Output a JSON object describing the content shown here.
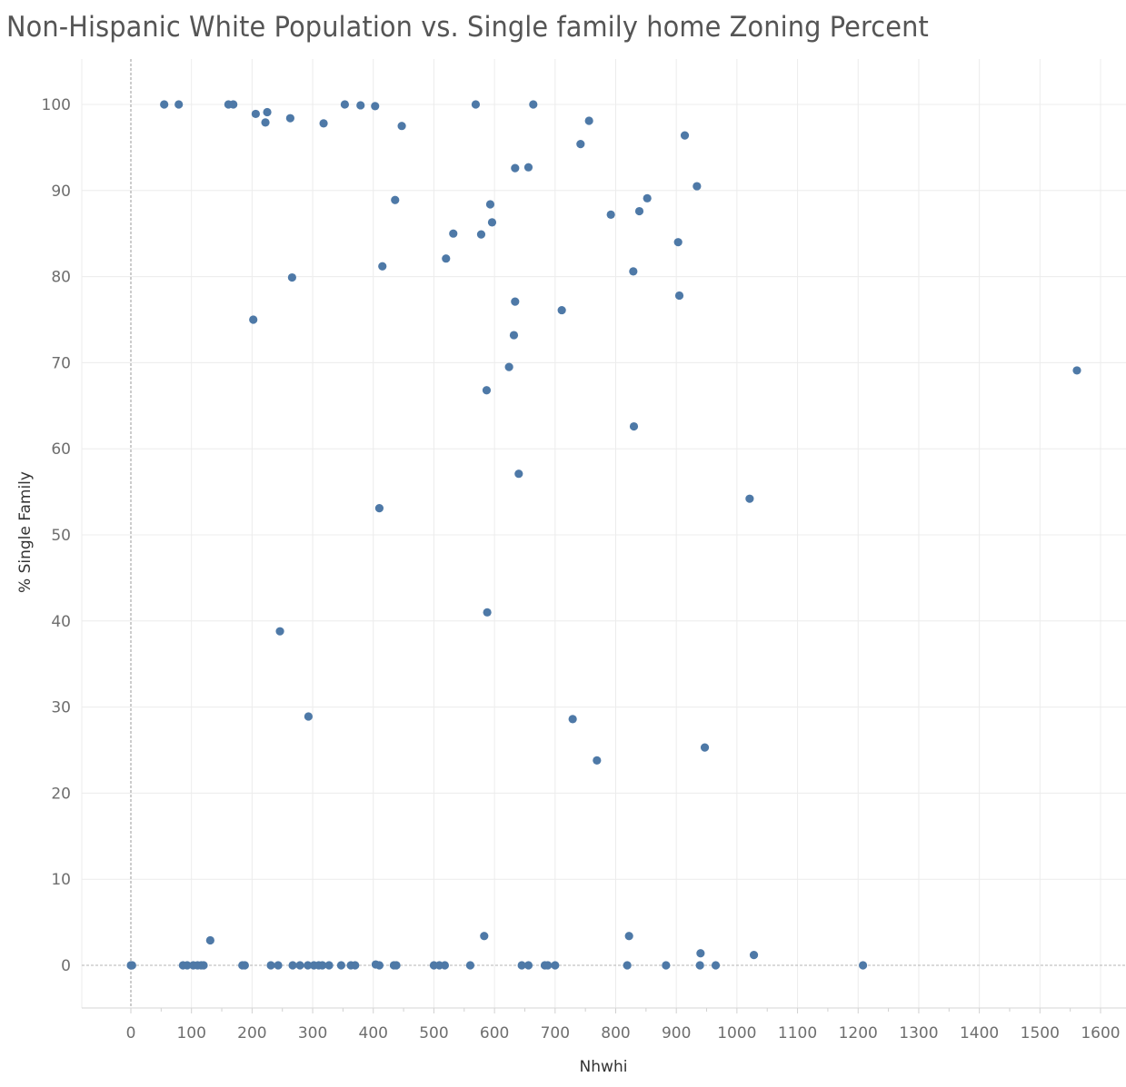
{
  "chart_data": {
    "type": "scatter",
    "title": "Non-Hispanic White Population vs. Single family home Zoning Percent",
    "xlabel": "Nhwhi",
    "ylabel": "% Single Family",
    "xlim": [
      -80,
      1640
    ],
    "ylim": [
      -5,
      105
    ],
    "x_ticks": [
      0,
      100,
      200,
      300,
      400,
      500,
      600,
      700,
      800,
      900,
      1000,
      1100,
      1200,
      1300,
      1400,
      1500,
      1600
    ],
    "y_ticks": [
      0,
      10,
      20,
      30,
      40,
      50,
      60,
      70,
      80,
      90,
      100
    ],
    "grid": true,
    "marker_color": "#4e79a7",
    "points": [
      {
        "x": 55,
        "y": 100
      },
      {
        "x": 79,
        "y": 100
      },
      {
        "x": 161,
        "y": 100
      },
      {
        "x": 169,
        "y": 100
      },
      {
        "x": 206,
        "y": 98.9
      },
      {
        "x": 225,
        "y": 99.1
      },
      {
        "x": 222,
        "y": 97.9
      },
      {
        "x": 263,
        "y": 98.4
      },
      {
        "x": 318,
        "y": 97.8
      },
      {
        "x": 353,
        "y": 100
      },
      {
        "x": 379,
        "y": 99.9
      },
      {
        "x": 403,
        "y": 99.8
      },
      {
        "x": 447,
        "y": 97.5
      },
      {
        "x": 569,
        "y": 100
      },
      {
        "x": 664,
        "y": 100
      },
      {
        "x": 756,
        "y": 98.1
      },
      {
        "x": 742,
        "y": 95.4
      },
      {
        "x": 914,
        "y": 96.4
      },
      {
        "x": 634,
        "y": 92.6
      },
      {
        "x": 656,
        "y": 92.7
      },
      {
        "x": 934,
        "y": 90.5
      },
      {
        "x": 436,
        "y": 88.9
      },
      {
        "x": 593,
        "y": 88.4
      },
      {
        "x": 852,
        "y": 89.1
      },
      {
        "x": 792,
        "y": 87.2
      },
      {
        "x": 839,
        "y": 87.6
      },
      {
        "x": 596,
        "y": 86.3
      },
      {
        "x": 532,
        "y": 85
      },
      {
        "x": 578,
        "y": 84.9
      },
      {
        "x": 903,
        "y": 84
      },
      {
        "x": 520,
        "y": 82.1
      },
      {
        "x": 415,
        "y": 81.2
      },
      {
        "x": 829,
        "y": 80.6
      },
      {
        "x": 266,
        "y": 79.9
      },
      {
        "x": 905,
        "y": 77.8
      },
      {
        "x": 634,
        "y": 77.1
      },
      {
        "x": 711,
        "y": 76.1
      },
      {
        "x": 202,
        "y": 75
      },
      {
        "x": 632,
        "y": 73.2
      },
      {
        "x": 624,
        "y": 69.5
      },
      {
        "x": 1561,
        "y": 69.1
      },
      {
        "x": 587,
        "y": 66.8
      },
      {
        "x": 830,
        "y": 62.6
      },
      {
        "x": 640,
        "y": 57.1
      },
      {
        "x": 1021,
        "y": 54.2
      },
      {
        "x": 410,
        "y": 53.1
      },
      {
        "x": 588,
        "y": 41
      },
      {
        "x": 246,
        "y": 38.8
      },
      {
        "x": 293,
        "y": 28.9
      },
      {
        "x": 729,
        "y": 28.6
      },
      {
        "x": 947,
        "y": 25.3
      },
      {
        "x": 769,
        "y": 23.8
      },
      {
        "x": 583,
        "y": 3.4
      },
      {
        "x": 822,
        "y": 3.4
      },
      {
        "x": 131,
        "y": 2.9
      },
      {
        "x": 940,
        "y": 1.4
      },
      {
        "x": 1028,
        "y": 1.2
      },
      {
        "x": 0,
        "y": 0
      },
      {
        "x": 2,
        "y": 0
      },
      {
        "x": 86,
        "y": 0
      },
      {
        "x": 93,
        "y": 0
      },
      {
        "x": 103,
        "y": 0
      },
      {
        "x": 110,
        "y": 0
      },
      {
        "x": 116,
        "y": 0
      },
      {
        "x": 120,
        "y": 0
      },
      {
        "x": 184,
        "y": 0
      },
      {
        "x": 188,
        "y": 0
      },
      {
        "x": 231,
        "y": 0
      },
      {
        "x": 243,
        "y": 0
      },
      {
        "x": 267,
        "y": 0
      },
      {
        "x": 279,
        "y": 0
      },
      {
        "x": 292,
        "y": 0
      },
      {
        "x": 302,
        "y": 0
      },
      {
        "x": 310,
        "y": 0
      },
      {
        "x": 316,
        "y": 0
      },
      {
        "x": 327,
        "y": 0
      },
      {
        "x": 347,
        "y": 0
      },
      {
        "x": 363,
        "y": 0
      },
      {
        "x": 370,
        "y": 0
      },
      {
        "x": 404,
        "y": 0.1
      },
      {
        "x": 410,
        "y": 0
      },
      {
        "x": 434,
        "y": 0
      },
      {
        "x": 438,
        "y": 0
      },
      {
        "x": 500,
        "y": 0
      },
      {
        "x": 509,
        "y": 0
      },
      {
        "x": 518,
        "y": 0
      },
      {
        "x": 560,
        "y": 0
      },
      {
        "x": 645,
        "y": 0
      },
      {
        "x": 656,
        "y": 0
      },
      {
        "x": 683,
        "y": 0
      },
      {
        "x": 688,
        "y": 0
      },
      {
        "x": 700,
        "y": 0
      },
      {
        "x": 819,
        "y": 0
      },
      {
        "x": 883,
        "y": 0
      },
      {
        "x": 939,
        "y": 0
      },
      {
        "x": 965,
        "y": 0
      },
      {
        "x": 1208,
        "y": 0
      }
    ]
  }
}
